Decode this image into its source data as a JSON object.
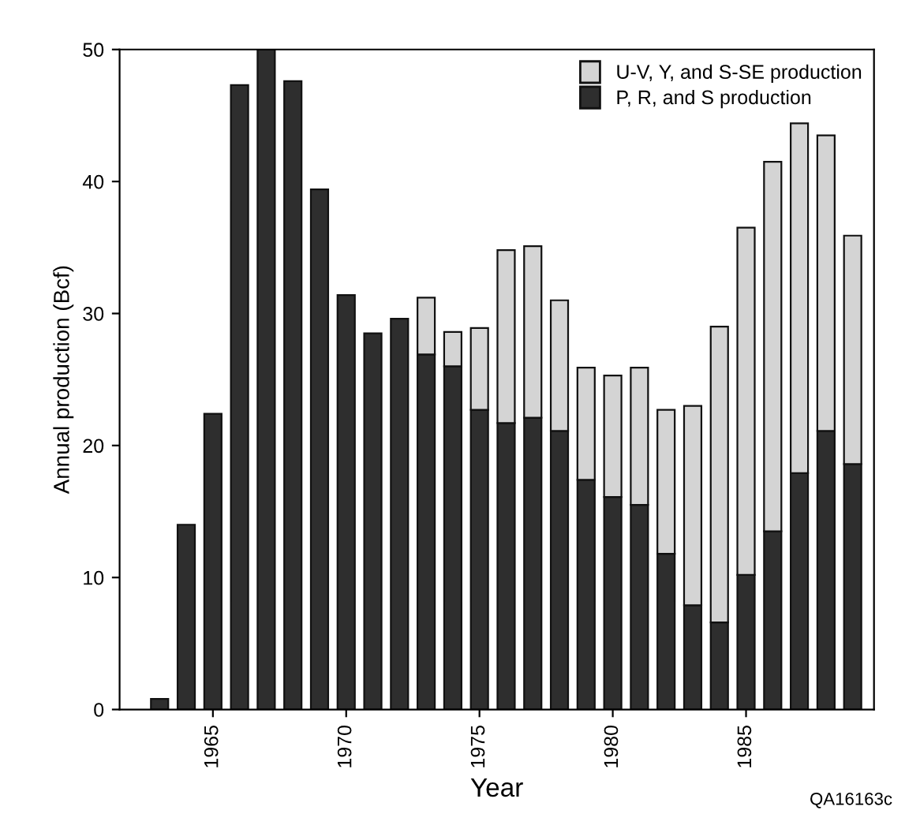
{
  "chart_data": {
    "type": "bar",
    "stacked": true,
    "xlabel": "Year",
    "ylabel": "Annual production (Bcf)",
    "x": [
      1963,
      1964,
      1965,
      1966,
      1967,
      1968,
      1969,
      1970,
      1971,
      1972,
      1973,
      1974,
      1975,
      1976,
      1977,
      1978,
      1979,
      1980,
      1981,
      1982,
      1983,
      1984,
      1985,
      1986,
      1987,
      1988,
      1989
    ],
    "series": [
      {
        "name": "P, R, and S production",
        "color": "#2e2e2e",
        "values": [
          0.8,
          14,
          22.4,
          47.3,
          50,
          47.6,
          39.4,
          31.4,
          28.5,
          29.6,
          26.9,
          26.0,
          22.7,
          21.7,
          22.1,
          21.1,
          17.4,
          16.1,
          15.5,
          11.8,
          7.9,
          6.6,
          10.2,
          13.5,
          17.9,
          21.1,
          18.6
        ]
      },
      {
        "name": "U-V, Y, and S-SE production",
        "color": "#d4d4d4",
        "values": [
          null,
          null,
          null,
          null,
          null,
          null,
          null,
          null,
          null,
          null,
          4.3,
          2.6,
          6.2,
          13.1,
          13.0,
          9.9,
          8.5,
          9.2,
          10.4,
          10.9,
          15.1,
          22.4,
          26.3,
          28.0,
          26.5,
          22.4,
          17.3
        ]
      }
    ],
    "xlim": [
      1961.5,
      1989.8
    ],
    "xticks": [
      1965,
      1970,
      1975,
      1980,
      1985
    ],
    "ylim": [
      0,
      50
    ],
    "yticks": [
      0,
      10,
      20,
      30,
      40,
      50
    ],
    "grid": false,
    "legend": "top right",
    "annotations": [
      "QA16163c"
    ]
  }
}
